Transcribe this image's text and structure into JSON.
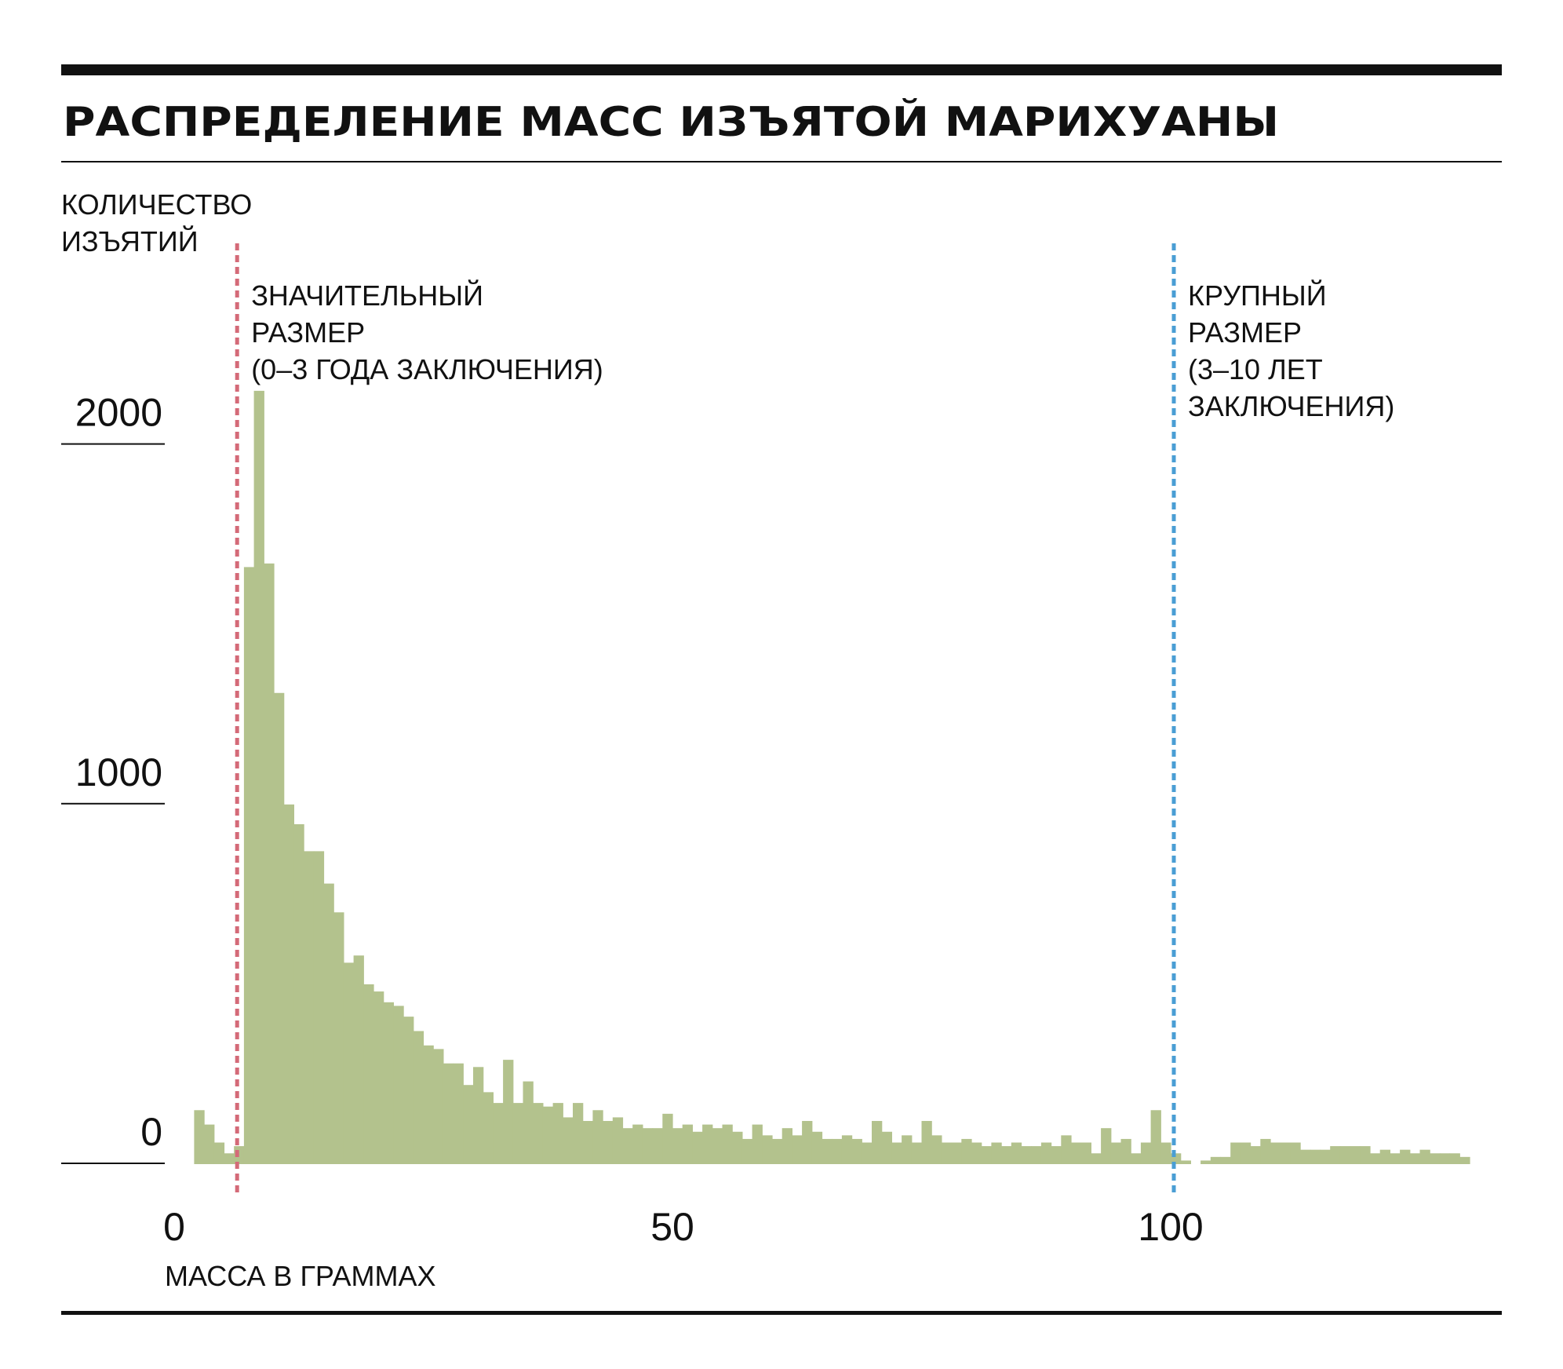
{
  "chart_data": {
    "type": "bar",
    "title": "РАСПРЕДЕЛЕНИЕ МАСС ИЗЪЯТОЙ МАРИХУАНЫ",
    "ylabel": [
      "КОЛИЧЕСТВО",
      "ИЗЪЯТИЙ"
    ],
    "xlabel": "МАССА В ГРАММАХ",
    "xlim": [
      0,
      130
    ],
    "ylim": [
      0,
      2150
    ],
    "bin_width": 1,
    "grid": false,
    "x_ticks": [
      0,
      50,
      100
    ],
    "y_ticks": [
      0,
      1000,
      2000
    ],
    "bar_color": "#b3c28d",
    "x": [
      2,
      3,
      4,
      5,
      6,
      7,
      8,
      9,
      10,
      11,
      12,
      13,
      14,
      15,
      16,
      17,
      18,
      19,
      20,
      21,
      22,
      23,
      24,
      25,
      26,
      27,
      28,
      29,
      30,
      31,
      32,
      33,
      34,
      35,
      36,
      37,
      38,
      39,
      40,
      41,
      42,
      43,
      44,
      45,
      46,
      47,
      48,
      49,
      50,
      51,
      52,
      53,
      54,
      55,
      56,
      57,
      58,
      59,
      60,
      61,
      62,
      63,
      64,
      65,
      66,
      67,
      68,
      69,
      70,
      71,
      72,
      73,
      74,
      75,
      76,
      77,
      78,
      79,
      80,
      81,
      82,
      83,
      84,
      85,
      86,
      87,
      88,
      89,
      90,
      91,
      92,
      93,
      94,
      95,
      96,
      97,
      98,
      99,
      100,
      101,
      102,
      103,
      104,
      105,
      106,
      107,
      108,
      109,
      110,
      111,
      112,
      113,
      114,
      115,
      116,
      117,
      118,
      119,
      120,
      121,
      122,
      123,
      124,
      125,
      126,
      127,
      128,
      129
    ],
    "values": [
      150,
      110,
      60,
      30,
      50,
      1660,
      2150,
      1670,
      1310,
      1000,
      945,
      870,
      870,
      780,
      700,
      560,
      580,
      500,
      480,
      450,
      440,
      410,
      370,
      330,
      320,
      280,
      280,
      220,
      270,
      200,
      170,
      290,
      170,
      230,
      170,
      160,
      170,
      130,
      170,
      120,
      150,
      120,
      130,
      100,
      110,
      100,
      100,
      140,
      100,
      110,
      90,
      110,
      100,
      110,
      90,
      70,
      110,
      80,
      70,
      100,
      80,
      120,
      90,
      70,
      70,
      80,
      70,
      60,
      120,
      90,
      60,
      80,
      60,
      120,
      80,
      60,
      60,
      70,
      60,
      50,
      60,
      50,
      60,
      50,
      50,
      60,
      50,
      80,
      60,
      60,
      30,
      100,
      60,
      70,
      30,
      60,
      150,
      60,
      30,
      10,
      0,
      10,
      20,
      20,
      60,
      60,
      50,
      70,
      60,
      60,
      60,
      40,
      40,
      40,
      50,
      50,
      50,
      50,
      30,
      40,
      30,
      40,
      30,
      40,
      30,
      30,
      30,
      20
    ],
    "thresholds": [
      {
        "x": 6,
        "color": "#d46a78",
        "label": [
          "ЗНАЧИТЕЛЬНЫЙ",
          "РАЗМЕР",
          "(0–3 ГОДА ЗАКЛЮЧЕНИЯ)"
        ]
      },
      {
        "x": 100,
        "color": "#4a9ed4",
        "label": [
          "КРУПНЫЙ",
          "РАЗМЕР",
          "(3–10 ЛЕТ",
          "ЗАКЛЮЧЕНИЯ)"
        ]
      }
    ]
  }
}
